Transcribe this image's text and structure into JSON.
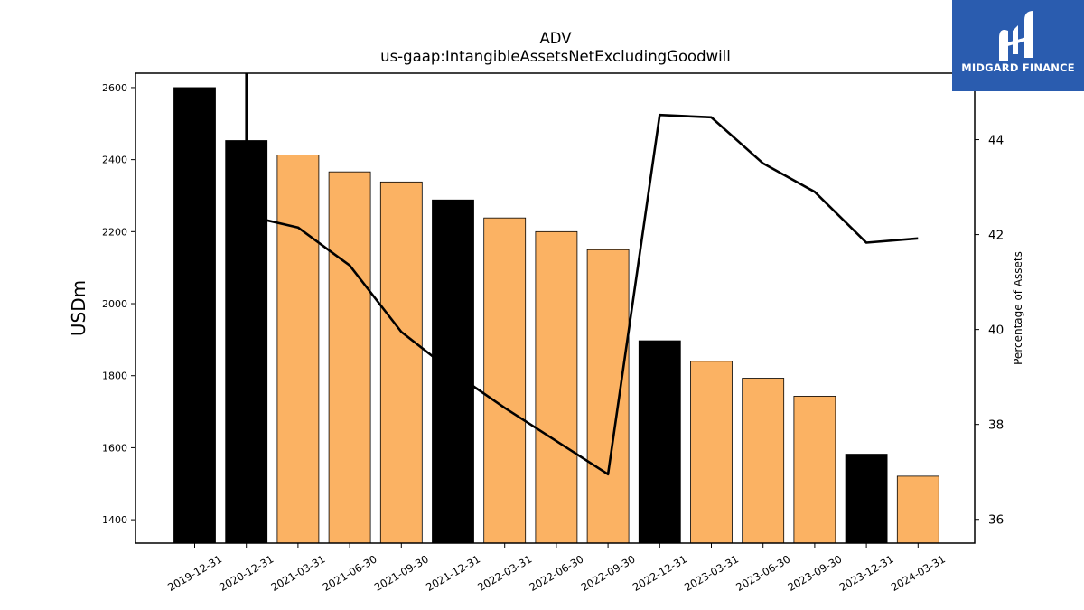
{
  "chart_data": {
    "type": "bar",
    "title": "ADV",
    "subtitle": "us-gaap:IntangibleAssetsNetExcludingGoodwill",
    "ylabel": "USDm",
    "y2label": "Percentage of Assets",
    "ylim": [
      1335,
      2640
    ],
    "y2lim": [
      35.5,
      45.4
    ],
    "yticks": [
      1400,
      1600,
      1800,
      2000,
      2200,
      2400,
      2600
    ],
    "y2ticks": [
      36,
      38,
      40,
      42,
      44
    ],
    "categories": [
      "2019-12-31",
      "2020-12-31",
      "2021-03-31",
      "2021-06-30",
      "2021-09-30",
      "2021-12-31",
      "2022-03-31",
      "2022-06-30",
      "2022-09-30",
      "2022-12-31",
      "2023-03-31",
      "2023-06-30",
      "2023-09-30",
      "2023-12-31",
      "2024-03-31"
    ],
    "series": [
      {
        "type": "bar",
        "values": [
          2600,
          2453,
          2413,
          2366,
          2338,
          2288,
          2238,
          2200,
          2150,
          1897,
          1840,
          1793,
          1743,
          1582,
          1521
        ],
        "colors": [
          "#000000",
          "#000000",
          "#fbb263",
          "#fbb263",
          "#fbb263",
          "#000000",
          "#fbb263",
          "#fbb263",
          "#fbb263",
          "#000000",
          "#fbb263",
          "#fbb263",
          "#fbb263",
          "#000000",
          "#fbb263"
        ]
      },
      {
        "type": "line",
        "axis": "right",
        "color": "#000000",
        "values": [
          55.0,
          42.4,
          42.15,
          41.35,
          39.95,
          39.1,
          38.35,
          37.65,
          36.95,
          44.52,
          44.47,
          43.5,
          42.9,
          41.83,
          41.92
        ]
      }
    ],
    "grid": false
  },
  "logo": {
    "text": "MIDGARD FINANCE"
  }
}
